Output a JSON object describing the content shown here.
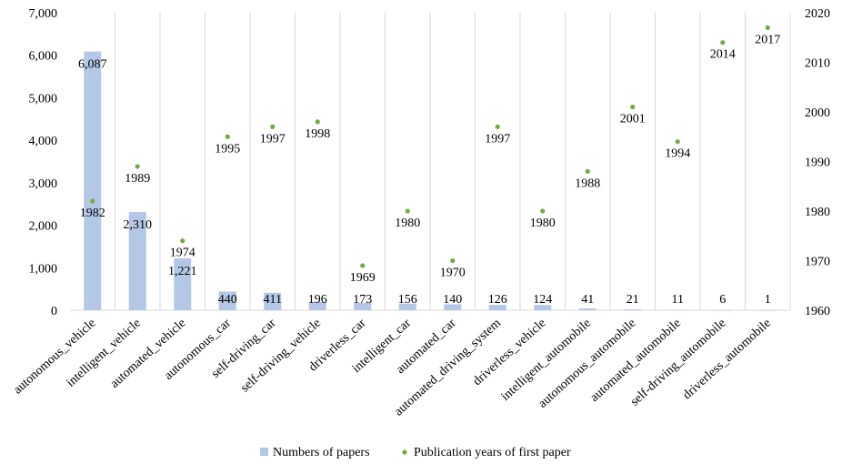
{
  "chart_data": {
    "type": "bar",
    "categories": [
      "autonomous_vehicle",
      "intelligent_vehicle",
      "automated_vehicle",
      "autonomous_car",
      "self-driving_car",
      "self-driving_vehicle",
      "driverless_car",
      "intelligent_car",
      "automated_car",
      "automated_driving_system",
      "driverless_vehicle",
      "intelligent_automobile",
      "autonomous_automobile",
      "automated_automobile",
      "self-driving_automobile",
      "driverless_automobile"
    ],
    "series": [
      {
        "name": "Numbers of papers",
        "type": "bar",
        "axis": "left",
        "values": [
          6087,
          2310,
          1221,
          440,
          411,
          196,
          173,
          156,
          140,
          126,
          124,
          41,
          21,
          11,
          6,
          1
        ],
        "labels": [
          "6,087",
          "2,310",
          "1,221",
          "440",
          "411",
          "196",
          "173",
          "156",
          "140",
          "126",
          "124",
          "41",
          "21",
          "11",
          "6",
          "1"
        ]
      },
      {
        "name": "Publication years of first paper",
        "type": "scatter",
        "axis": "right",
        "values": [
          1982,
          1989,
          1974,
          1995,
          1997,
          1998,
          1969,
          1980,
          1970,
          1997,
          1980,
          1988,
          2001,
          1994,
          2014,
          2017
        ],
        "labels": [
          "1982",
          "1989",
          "1974",
          "1995",
          "1997",
          "1998",
          "1969",
          "1980",
          "1970",
          "1997",
          "1980",
          "1988",
          "2001",
          "1994",
          "2014",
          "2017"
        ]
      }
    ],
    "y_left": {
      "ylim": [
        0,
        7000
      ],
      "ticks": [
        0,
        1000,
        2000,
        3000,
        4000,
        5000,
        6000,
        7000
      ],
      "tick_labels": [
        "0",
        "1,000",
        "2,000",
        "3,000",
        "4,000",
        "5,000",
        "6,000",
        "7,000"
      ]
    },
    "y_right": {
      "ylim": [
        1960,
        2020
      ],
      "ticks": [
        1960,
        1970,
        1980,
        1990,
        2000,
        2010,
        2020
      ],
      "tick_labels": [
        "1960",
        "1970",
        "1980",
        "1990",
        "2000",
        "2010",
        "2020"
      ]
    },
    "legend": {
      "placement": "bottom",
      "entries": [
        "Numbers of papers",
        "Publication years of first paper"
      ]
    },
    "colors": {
      "bar": "#b4c7e7",
      "dot": "#70ad47",
      "grid": "#d9d9d9"
    },
    "grid": "vertical category separators"
  }
}
